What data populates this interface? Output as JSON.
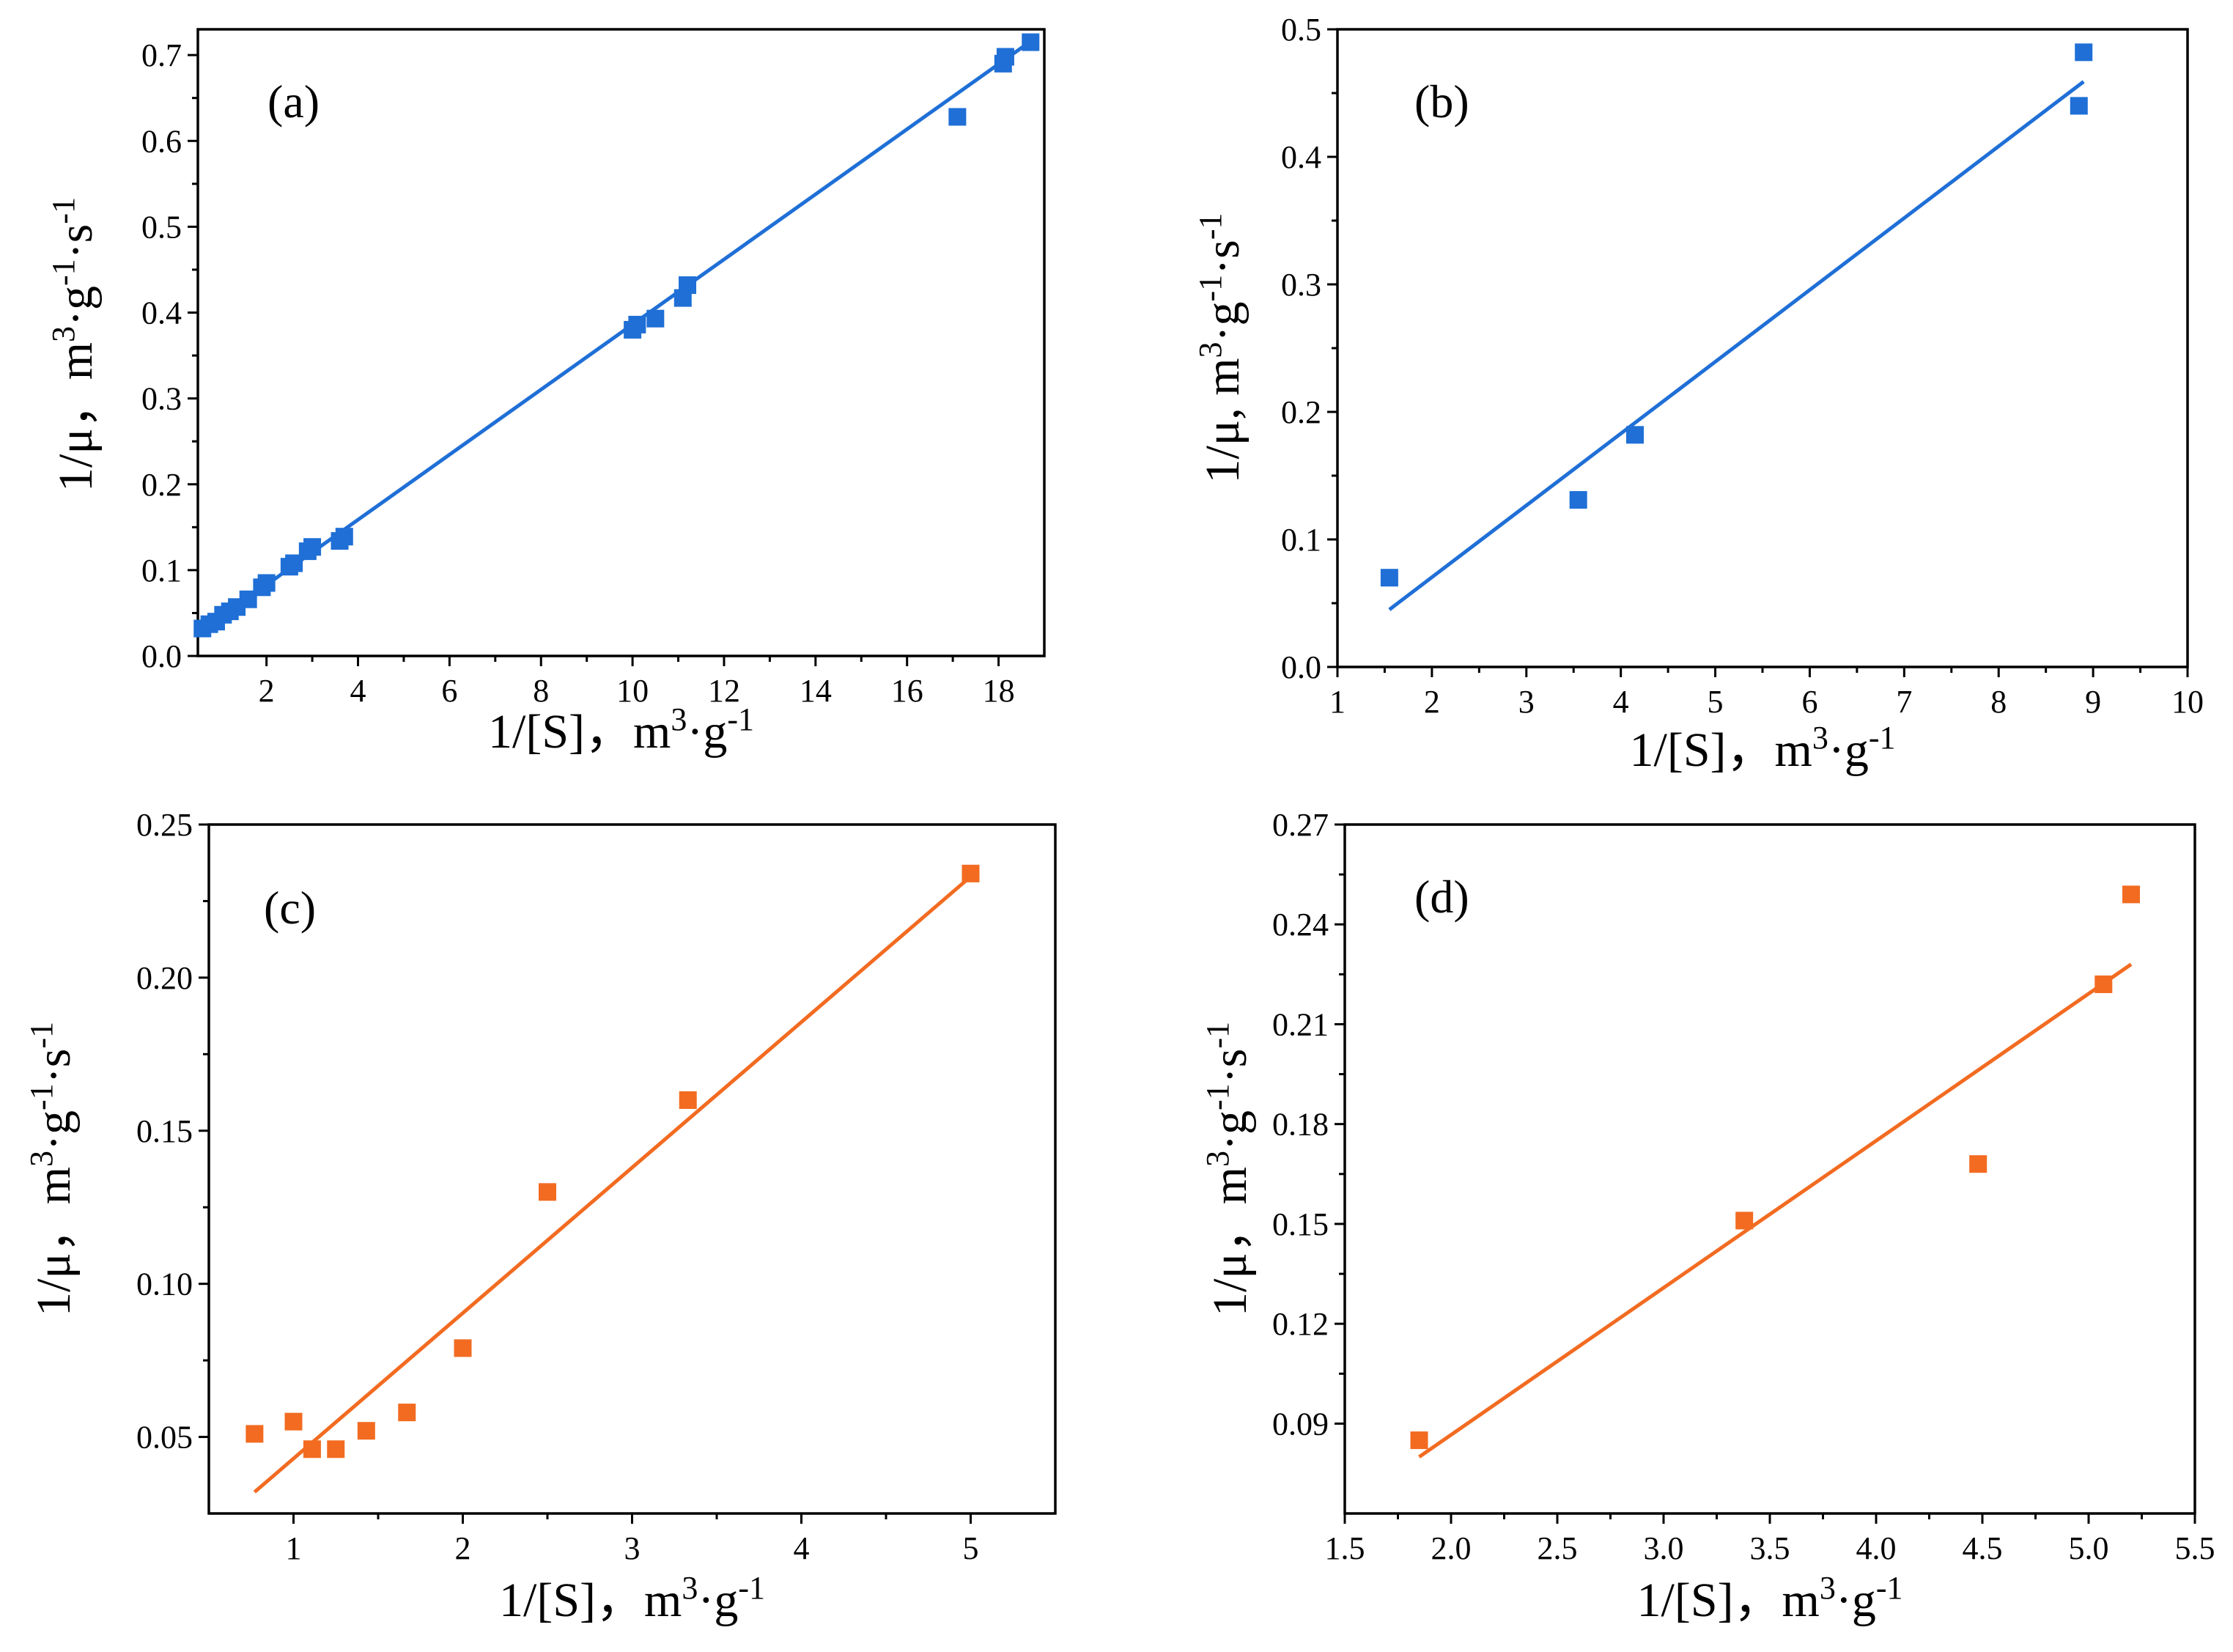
{
  "figure": {
    "description": "Four Lineweaver-Burk style plots (a)-(d)"
  },
  "chart_data": [
    {
      "panel": "(a)",
      "type": "scatter",
      "xlabel": "1/[S]，m³·g⁻¹",
      "ylabel": "1/μ，m³·g⁻¹·s⁻¹",
      "xlim": [
        0.5,
        19
      ],
      "ylim": [
        0,
        0.73
      ],
      "xticks": [
        2,
        4,
        6,
        8,
        10,
        12,
        14,
        16,
        18
      ],
      "xtick_labels": [
        "2",
        "4",
        "6",
        "8",
        "10",
        "12",
        "14",
        "16",
        "18"
      ],
      "yticks": [
        0.0,
        0.1,
        0.2,
        0.3,
        0.4,
        0.5,
        0.6,
        0.7
      ],
      "ytick_labels": [
        "0.0",
        "0.1",
        "0.2",
        "0.3",
        "0.4",
        "0.5",
        "0.6",
        "0.7"
      ],
      "color": "#1f6fd6",
      "points": {
        "x": [
          0.6,
          0.75,
          0.9,
          1.05,
          1.2,
          1.35,
          1.6,
          1.9,
          2.0,
          2.5,
          2.6,
          2.9,
          3.0,
          3.6,
          3.7,
          10.0,
          10.1,
          10.5,
          11.1,
          11.2,
          17.1,
          18.1,
          18.15,
          18.7
        ],
        "y": [
          0.032,
          0.037,
          0.04,
          0.048,
          0.052,
          0.057,
          0.066,
          0.08,
          0.085,
          0.104,
          0.108,
          0.122,
          0.127,
          0.134,
          0.139,
          0.38,
          0.386,
          0.393,
          0.417,
          0.432,
          0.628,
          0.69,
          0.698,
          0.715
        ]
      },
      "fit": {
        "x": [
          0.5,
          18.7
        ],
        "y": [
          0.026,
          0.716
        ]
      }
    },
    {
      "panel": "(b)",
      "type": "scatter",
      "xlabel": "1/[S]，m³·g⁻¹",
      "ylabel": "1/μ, m³·g⁻¹·s⁻¹",
      "xlim": [
        1,
        10
      ],
      "ylim": [
        0,
        0.5
      ],
      "xticks": [
        1,
        2,
        3,
        4,
        5,
        6,
        7,
        8,
        9,
        10
      ],
      "xtick_labels": [
        "1",
        "2",
        "3",
        "4",
        "5",
        "6",
        "7",
        "8",
        "9",
        "10"
      ],
      "yticks": [
        0.0,
        0.1,
        0.2,
        0.3,
        0.4,
        0.5
      ],
      "ytick_labels": [
        "0.0",
        "0.1",
        "0.2",
        "0.3",
        "0.4",
        "0.5"
      ],
      "color": "#1f6fd6",
      "points": {
        "x": [
          1.55,
          3.55,
          4.15,
          8.85,
          8.9
        ],
        "y": [
          0.07,
          0.131,
          0.182,
          0.44,
          0.482
        ]
      },
      "fit": {
        "x": [
          1.55,
          8.9
        ],
        "y": [
          0.045,
          0.459
        ]
      }
    },
    {
      "panel": "(c)",
      "type": "scatter",
      "xlabel": "1/[S]，m³·g⁻¹",
      "ylabel": "1/μ，m³·g⁻¹·s⁻¹",
      "xlim": [
        0.5,
        5.5
      ],
      "ylim": [
        0.025,
        0.25
      ],
      "xticks": [
        1,
        2,
        3,
        4,
        5
      ],
      "xtick_labels": [
        "1",
        "2",
        "3",
        "4",
        "5"
      ],
      "yticks": [
        0.05,
        0.1,
        0.15,
        0.2,
        0.25
      ],
      "ytick_labels": [
        "0.05",
        "0.10",
        "0.15",
        "0.20",
        "0.25"
      ],
      "color": "#f26b21",
      "points": {
        "x": [
          0.77,
          1.0,
          1.11,
          1.25,
          1.43,
          1.67,
          2.0,
          2.5,
          3.33,
          5.0
        ],
        "y": [
          0.051,
          0.055,
          0.046,
          0.046,
          0.052,
          0.058,
          0.079,
          0.13,
          0.16,
          0.234
        ]
      },
      "fit": {
        "x": [
          0.77,
          5.0
        ],
        "y": [
          0.032,
          0.233
        ]
      }
    },
    {
      "panel": "(d)",
      "type": "scatter",
      "xlabel": "1/[S]，m³·g⁻¹",
      "ylabel": "1/μ，m³·g⁻¹·s⁻¹",
      "xlim": [
        1.5,
        5.5
      ],
      "ylim": [
        0.063,
        0.27
      ],
      "xticks": [
        1.5,
        2.0,
        2.5,
        3.0,
        3.5,
        4.0,
        4.5,
        5.0,
        5.5
      ],
      "xtick_labels": [
        "1.5",
        "2.0",
        "2.5",
        "3.0",
        "3.5",
        "4.0",
        "4.5",
        "5.0",
        "5.5"
      ],
      "yticks": [
        0.09,
        0.12,
        0.15,
        0.18,
        0.21,
        0.24,
        0.27
      ],
      "ytick_labels": [
        "0.09",
        "0.12",
        "0.15",
        "0.18",
        "0.21",
        "0.24",
        "0.27"
      ],
      "color": "#f26b21",
      "points": {
        "x": [
          1.85,
          3.38,
          4.48,
          5.07,
          5.2
        ],
        "y": [
          0.085,
          0.151,
          0.168,
          0.222,
          0.249
        ]
      },
      "fit": {
        "x": [
          1.85,
          5.2
        ],
        "y": [
          0.08,
          0.228
        ]
      }
    }
  ]
}
